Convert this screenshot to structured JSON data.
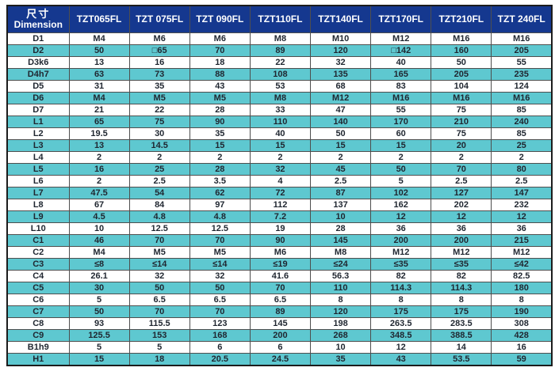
{
  "table": {
    "header": {
      "dim_label_cn": "尺寸",
      "dim_label_en": "Dimension",
      "columns": [
        "TZT065FL",
        "TZT 075FL",
        "TZT 090FL",
        "TZT110FL",
        "TZT140FL",
        "TZT170FL",
        "TZT210FL",
        "TZT 240FL"
      ]
    },
    "rows": [
      {
        "label": "D1",
        "values": [
          "M4",
          "M6",
          "M6",
          "M8",
          "M10",
          "M12",
          "M16",
          "M16"
        ]
      },
      {
        "label": "D2",
        "values": [
          "50",
          "□65",
          "70",
          "89",
          "120",
          "□142",
          "160",
          "205"
        ]
      },
      {
        "label": "D3k6",
        "values": [
          "13",
          "16",
          "18",
          "22",
          "32",
          "40",
          "50",
          "55"
        ]
      },
      {
        "label": "D4h7",
        "values": [
          "63",
          "73",
          "88",
          "108",
          "135",
          "165",
          "205",
          "235"
        ]
      },
      {
        "label": "D5",
        "values": [
          "31",
          "35",
          "43",
          "53",
          "68",
          "83",
          "104",
          "124"
        ]
      },
      {
        "label": "D6",
        "values": [
          "M4",
          "M5",
          "M5",
          "M8",
          "M12",
          "M16",
          "M16",
          "M16"
        ]
      },
      {
        "label": "D7",
        "values": [
          "21",
          "22",
          "28",
          "33",
          "47",
          "55",
          "75",
          "85"
        ]
      },
      {
        "label": "L1",
        "values": [
          "65",
          "75",
          "90",
          "110",
          "140",
          "170",
          "210",
          "240"
        ]
      },
      {
        "label": "L2",
        "values": [
          "19.5",
          "30",
          "35",
          "40",
          "50",
          "60",
          "75",
          "85"
        ]
      },
      {
        "label": "L3",
        "values": [
          "13",
          "14.5",
          "15",
          "15",
          "15",
          "15",
          "20",
          "25"
        ]
      },
      {
        "label": "L4",
        "values": [
          "2",
          "2",
          "2",
          "2",
          "2",
          "2",
          "2",
          "2"
        ]
      },
      {
        "label": "L5",
        "values": [
          "16",
          "25",
          "28",
          "32",
          "45",
          "50",
          "70",
          "80"
        ]
      },
      {
        "label": "L6",
        "values": [
          "2",
          "2.5",
          "3.5",
          "4",
          "2.5",
          "5",
          "2.5",
          "2.5"
        ]
      },
      {
        "label": "L7",
        "values": [
          "47.5",
          "54",
          "62",
          "72",
          "87",
          "102",
          "127",
          "147"
        ]
      },
      {
        "label": "L8",
        "values": [
          "67",
          "84",
          "97",
          "112",
          "137",
          "162",
          "202",
          "232"
        ]
      },
      {
        "label": "L9",
        "values": [
          "4.5",
          "4.8",
          "4.8",
          "7.2",
          "10",
          "12",
          "12",
          "12"
        ]
      },
      {
        "label": "L10",
        "values": [
          "10",
          "12.5",
          "12.5",
          "19",
          "28",
          "36",
          "36",
          "36"
        ]
      },
      {
        "label": "C1",
        "values": [
          "46",
          "70",
          "70",
          "90",
          "145",
          "200",
          "200",
          "215"
        ]
      },
      {
        "label": "C2",
        "values": [
          "M4",
          "M5",
          "M5",
          "M6",
          "M8",
          "M12",
          "M12",
          "M12"
        ]
      },
      {
        "label": "C3",
        "values": [
          "≤8",
          "≤14",
          "≤14",
          "≤19",
          "≤24",
          "≤35",
          "≤35",
          "≤42"
        ]
      },
      {
        "label": "C4",
        "values": [
          "26.1",
          "32",
          "32",
          "41.6",
          "56.3",
          "82",
          "82",
          "82.5"
        ]
      },
      {
        "label": "C5",
        "values": [
          "30",
          "50",
          "50",
          "70",
          "110",
          "114.3",
          "114.3",
          "180"
        ]
      },
      {
        "label": "C6",
        "values": [
          "5",
          "6.5",
          "6.5",
          "6.5",
          "8",
          "8",
          "8",
          "8"
        ]
      },
      {
        "label": "C7",
        "values": [
          "50",
          "70",
          "70",
          "89",
          "120",
          "175",
          "175",
          "190"
        ]
      },
      {
        "label": "C8",
        "values": [
          "93",
          "115.5",
          "123",
          "145",
          "198",
          "263.5",
          "283.5",
          "308"
        ]
      },
      {
        "label": "C9",
        "values": [
          "125.5",
          "153",
          "168",
          "200",
          "268",
          "348.5",
          "388.5",
          "428"
        ]
      },
      {
        "label": "B1h9",
        "values": [
          "5",
          "5",
          "6",
          "6",
          "10",
          "12",
          "14",
          "16"
        ]
      },
      {
        "label": "H1",
        "values": [
          "15",
          "18",
          "20.5",
          "24.5",
          "35",
          "43",
          "53.5",
          "59"
        ]
      }
    ],
    "colors": {
      "header_bg": "#15388f",
      "header_text": "#ffffff",
      "row_bg": "#ffffff",
      "row_alt_bg": "#5ec8d0",
      "body_text": "#1f2630",
      "border": "#4e4e4e"
    }
  }
}
